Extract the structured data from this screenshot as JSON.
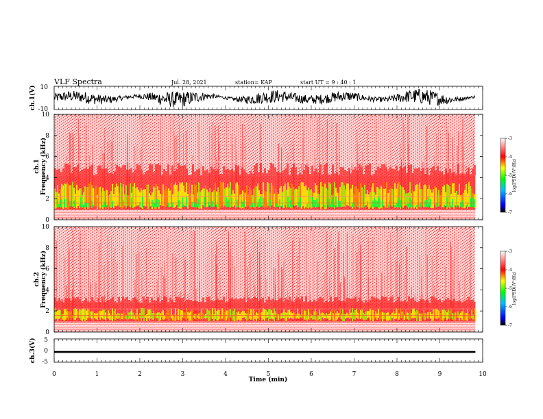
{
  "header": {
    "title": "VLF Spectra",
    "date": "Jul. 28, 2021",
    "station": "station= KAP",
    "start": "start  UT =   9 : 40 : 1"
  },
  "chart_data": [
    {
      "type": "line",
      "id": "ch1-waveform",
      "ylabel": "ch.1(V)",
      "ylim": [
        -10,
        10
      ],
      "yticks": [
        "10",
        "-10"
      ],
      "x_range_min": [
        0,
        9.83
      ],
      "description_level": "dense noisy waveform oscillating between about -8 and 8 V"
    },
    {
      "type": "heatmap",
      "id": "ch1-spectrogram",
      "ylabel": "ch.1\nFrequency  (kHz)",
      "ylim": [
        0,
        10
      ],
      "yticks": [
        "0",
        "2",
        "4",
        "6",
        "8",
        "10"
      ],
      "x_range_min": [
        0,
        9.83
      ],
      "colorbar": {
        "min": -7,
        "max": -3,
        "ticks": [
          "-3",
          "-4",
          "-5",
          "-6",
          "-7"
        ],
        "label": "log(PSD)(V²/Hz)"
      }
    },
    {
      "type": "heatmap",
      "id": "ch2-spectrogram",
      "ylabel": "ch.2\nFrequency  (kHz)",
      "ylim": [
        0,
        10
      ],
      "yticks": [
        "0",
        "2",
        "4",
        "6",
        "8",
        "10"
      ],
      "x_range_min": [
        0,
        9.83
      ],
      "colorbar": {
        "min": -7,
        "max": -3,
        "ticks": [
          "-3",
          "-4",
          "-5",
          "-6",
          "-7"
        ],
        "label": "log(PSD)(V²/Hz)"
      }
    },
    {
      "type": "line",
      "id": "ch3-waveform",
      "ylabel": "ch.3(V)",
      "ylim": [
        -5,
        5
      ],
      "yticks": [
        "5",
        "0",
        "-5"
      ],
      "x_range_min": [
        0,
        9.83
      ],
      "level_range": [
        -1.0,
        -0.2
      ]
    }
  ],
  "xaxis": {
    "label": "Time  (min)",
    "range": [
      0,
      10
    ],
    "ticks": [
      "0",
      "1",
      "2",
      "3",
      "4",
      "5",
      "6",
      "7",
      "8",
      "9",
      "10"
    ]
  },
  "colors": {
    "waveform": "#000000",
    "spectro_bg": "#ffffff",
    "spectro_high": "#ff0000",
    "spectro_mid": "#ffff00",
    "spectro_low": "#00ff00"
  }
}
